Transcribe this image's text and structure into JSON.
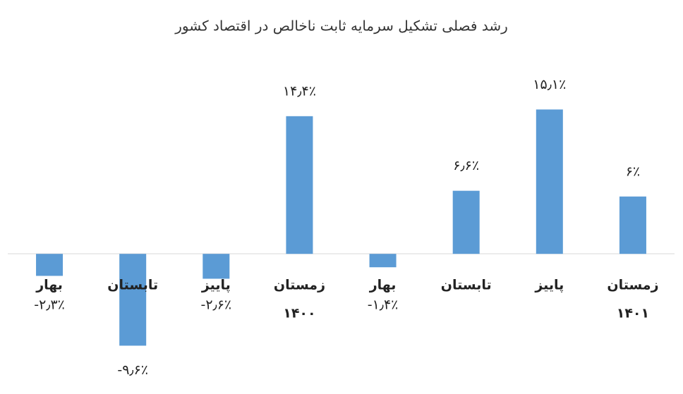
{
  "chart_data": {
    "type": "bar",
    "title": "رشد فصلی تشکیل سرمایه ثابت ناخالص در اقتصاد کشور",
    "categories": [
      "بهار",
      "تابستان",
      "پاییز",
      "زمستان",
      "بهار",
      "تابستان",
      "پاییز",
      "زمستان"
    ],
    "year_labels": [
      null,
      null,
      null,
      "۱۴۰۰",
      null,
      null,
      null,
      "۱۴۰۱"
    ],
    "values": [
      -2.3,
      -9.6,
      -2.6,
      14.4,
      -1.4,
      6.6,
      15.1,
      6
    ],
    "value_labels": [
      "-۲٫۳٪",
      "-۹٫۶٪",
      "-۲٫۶٪",
      "۱۴٫۴٪",
      "-۱٫۴٪",
      "۶٫۶٪",
      "۱۵٫۱٪",
      "۶٪"
    ],
    "color": "#5b9bd5",
    "ylim": [
      -12,
      18
    ]
  }
}
